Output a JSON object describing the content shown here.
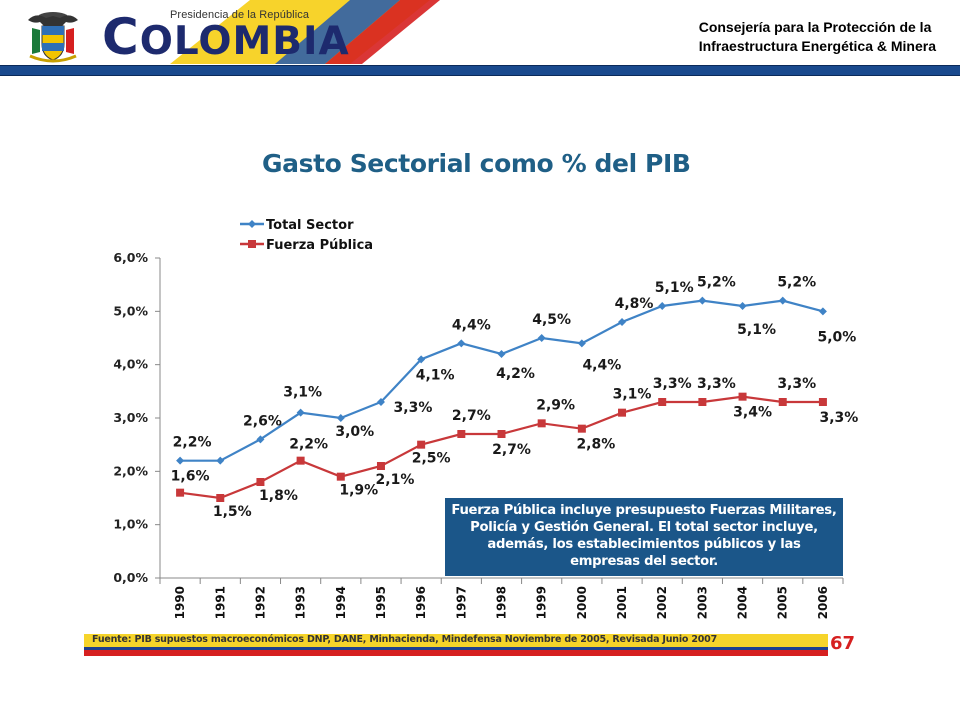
{
  "header": {
    "logo_subtitle": "Presidencia de la República",
    "logo_first_letter": "C",
    "logo_rest": "OLOMBIA",
    "org_line1": "Consejería para la Protección de la",
    "org_line2": "Infraestructura Energética & Minera",
    "bar_color": "#1a4a8e"
  },
  "chart_data": {
    "type": "line",
    "title": "Gasto Sectorial como % del PIB",
    "x": [
      "1990",
      "1991",
      "1992",
      "1993",
      "1994",
      "1995",
      "1996",
      "1997",
      "1998",
      "1999",
      "2000",
      "2001",
      "2002",
      "2003",
      "2004",
      "2005",
      "2006"
    ],
    "ylim": [
      0,
      6
    ],
    "yticks": [
      "0,0%",
      "1,0%",
      "2,0%",
      "3,0%",
      "4,0%",
      "5,0%",
      "6,0%"
    ],
    "legend_position": "top-left",
    "series": [
      {
        "name": "Total Sector",
        "color": "#3f83c6",
        "values": [
          2.2,
          2.2,
          2.6,
          3.1,
          3.0,
          3.3,
          4.1,
          4.4,
          4.2,
          4.5,
          4.4,
          4.8,
          5.1,
          5.2,
          5.1,
          5.2,
          5.0
        ],
        "labels": [
          "2,2%",
          "",
          "2,6%",
          "3,1%",
          "3,0%",
          "3,3%",
          "4,1%",
          "4,4%",
          "4,2%",
          "4,5%",
          "4,4%",
          "4,8%",
          "5,1%",
          "5,2%",
          "5,1%",
          "5,2%",
          "5,0%"
        ]
      },
      {
        "name": "Fuerza Pública",
        "color": "#c8383a",
        "values": [
          1.6,
          1.5,
          1.8,
          2.2,
          1.9,
          2.1,
          2.5,
          2.7,
          2.7,
          2.9,
          2.8,
          3.1,
          3.3,
          3.3,
          3.4,
          3.3,
          3.3
        ],
        "labels": [
          "1,6%",
          "1,5%",
          "1,8%",
          "2,2%",
          "1,9%",
          "2,1%",
          "2,5%",
          "2,7%",
          "2,7%",
          "2,9%",
          "2,8%",
          "3,1%",
          "3,3%",
          "3,3%",
          "3,4%",
          "3,3%",
          "3,3%"
        ]
      }
    ],
    "annotation": [
      "Fuerza Pública incluye presupuesto Fuerzas Militares,",
      "Policía y Gestión General. El total sector incluye,",
      "además,  los establecimientos públicos y las",
      "empresas del sector."
    ]
  },
  "footer": {
    "source": "Fuente: PIB supuestos macroeconómicos DNP, DANE, Minhacienda, Mindefensa     Noviembre de 2005, Revisada Junio 2007",
    "page_number": "67"
  }
}
